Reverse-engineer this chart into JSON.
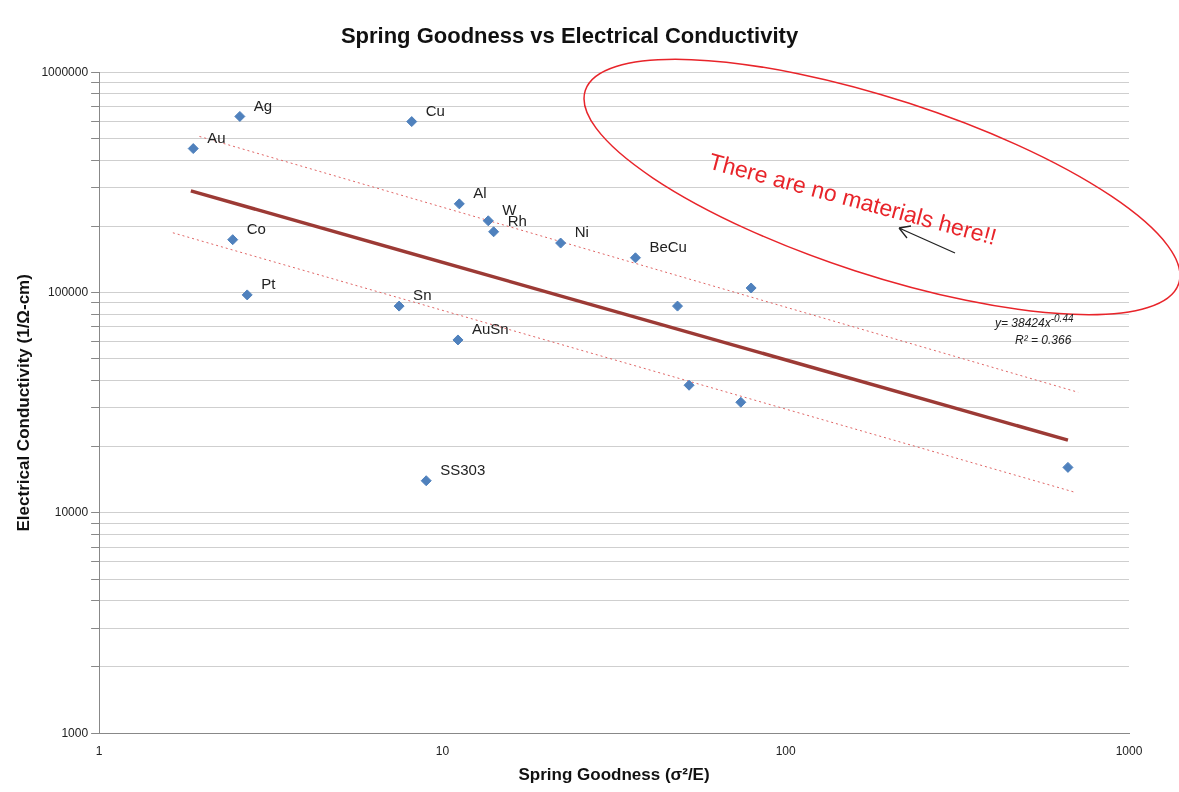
{
  "chart_data": {
    "type": "scatter",
    "title": "Spring Goodness vs Electrical Conductivity",
    "xlabel": "Spring Goodness (σ²/E)",
    "ylabel": "Electrical Conductivity (1/Ω-cm)",
    "log": "xy",
    "grid": "y",
    "legend": false,
    "marker": "diamond",
    "xlim": [
      1,
      1000
    ],
    "xticks": [
      1,
      10,
      100,
      1000
    ],
    "ylim": [
      1000,
      1000000
    ],
    "yticks": [
      1000,
      {
        "value": 2000,
        "label": null
      },
      {
        "value": 3000,
        "label": null
      },
      {
        "value": 4000,
        "label": null
      },
      {
        "value": 5000,
        "label": null
      },
      {
        "value": 6000,
        "label": null
      },
      {
        "value": 7000,
        "label": null
      },
      {
        "value": 8000,
        "label": null
      },
      {
        "value": 9000,
        "label": null
      },
      10000,
      {
        "value": 20000,
        "label": null
      },
      {
        "value": 30000,
        "label": null
      },
      {
        "value": 40000,
        "label": null
      },
      {
        "value": 50000,
        "label": null
      },
      {
        "value": 60000,
        "label": null
      },
      {
        "value": 70000,
        "label": null
      },
      {
        "value": 80000,
        "label": null
      },
      {
        "value": 90000,
        "label": null
      },
      100000,
      {
        "value": 200000,
        "label": null
      },
      {
        "value": 300000,
        "label": null
      },
      {
        "value": 400000,
        "label": null
      },
      {
        "value": 500000,
        "label": null
      },
      {
        "value": 600000,
        "label": null
      },
      {
        "value": 700000,
        "label": null
      },
      {
        "value": 800000,
        "label": null
      },
      {
        "value": 900000,
        "label": null
      },
      1000000
    ],
    "series": [
      {
        "color": "#4f81bd",
        "x": [
          2.57,
          1.88,
          8.14,
          11.2,
          13.6,
          14.1,
          22.1,
          36.5,
          79.3,
          2.45,
          2.7,
          7.48,
          11.1,
          48.4,
          52.3,
          74.0,
          8.97,
          664
        ],
        "values": [
          631000,
          451000,
          598000,
          253000,
          212000,
          189000,
          168000,
          144000,
          105000,
          174000,
          97700,
          86900,
          61000,
          86900,
          38000,
          31800,
          14000,
          16100
        ]
      },
      {
        "type": "line",
        "color": "#9c3a35",
        "x": [
          1.85,
          664
        ],
        "values": [
          290000,
          21400
        ],
        "line_style": "solid",
        "marker": "none"
      },
      {
        "type": "line",
        "color": "#e06666",
        "x": [
          1.96,
          711
        ],
        "values": [
          512000,
          35300
        ],
        "line_style": "dotted",
        "marker": "none"
      },
      {
        "type": "line",
        "color": "#e06666",
        "x": [
          1.64,
          697
        ],
        "values": [
          187000,
          12400
        ],
        "line_style": "dotted",
        "marker": "none"
      }
    ],
    "annotations": [
      {
        "text": "Ag",
        "x": 2.57,
        "y": 631000
      },
      {
        "text": "Au",
        "x": 1.88,
        "y": 451000
      },
      {
        "text": "Cu",
        "x": 8.14,
        "y": 598000
      },
      {
        "text": "Al",
        "x": 11.2,
        "y": 253000
      },
      {
        "text": "W",
        "x": 13.6,
        "y": 212000
      },
      {
        "text": "Rh",
        "x": 14.1,
        "y": 189000
      },
      {
        "text": "Ni",
        "x": 22.1,
        "y": 168000
      },
      {
        "text": "BeCu",
        "x": 36.5,
        "y": 144000
      },
      {
        "text": "Co",
        "x": 2.45,
        "y": 174000
      },
      {
        "text": "Pt",
        "x": 2.7,
        "y": 97700
      },
      {
        "text": "Sn",
        "x": 7.48,
        "y": 86900
      },
      {
        "text": "AuSn",
        "x": 11.1,
        "y": 61000
      },
      {
        "text": "SS303",
        "x": 8.97,
        "y": 14000
      },
      "There are no materials here!!",
      "y= 38424x$^{-0.44}$",
      "R² = 0.366"
    ]
  }
}
